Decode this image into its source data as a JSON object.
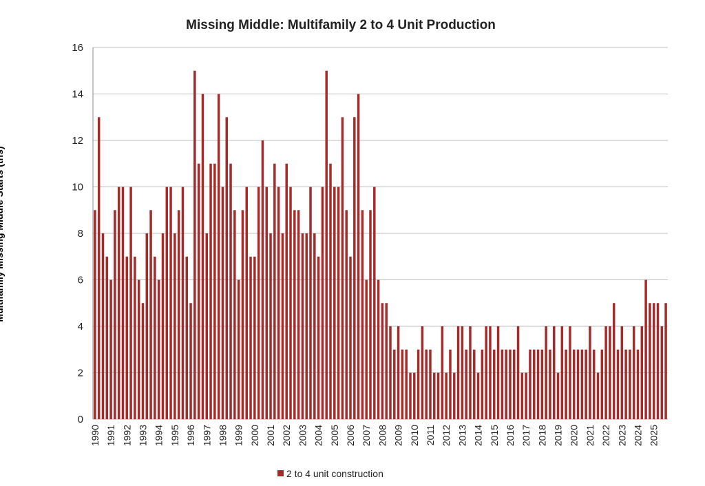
{
  "chart_data": {
    "type": "bar",
    "title": "Missing Middle: Multifamily 2 to 4 Unit Production",
    "y_label": "Multifamily Missing Middle Starts (ths)",
    "categories": [
      "1990",
      null,
      null,
      null,
      "1991",
      null,
      null,
      null,
      "1992",
      null,
      null,
      null,
      "1993",
      null,
      null,
      null,
      "1994",
      null,
      null,
      null,
      "1995",
      null,
      null,
      null,
      "1996",
      null,
      null,
      null,
      "1997",
      null,
      null,
      null,
      "1998",
      null,
      null,
      null,
      "1999",
      null,
      null,
      null,
      "2000",
      null,
      null,
      null,
      "2001",
      null,
      null,
      null,
      "2002",
      null,
      null,
      null,
      "2003",
      null,
      null,
      null,
      "2004",
      null,
      null,
      null,
      "2005",
      null,
      null,
      null,
      "2006",
      null,
      null,
      null,
      "2007",
      null,
      null,
      null,
      "2008",
      null,
      null,
      null,
      "2009",
      null,
      null,
      null,
      "2010",
      null,
      null,
      null,
      "2011",
      null,
      null,
      null,
      "2012",
      null,
      null,
      null,
      "2013",
      null,
      null,
      null,
      "2014",
      null,
      null,
      null,
      "2015",
      null,
      null,
      null,
      "2016",
      null,
      null,
      null,
      "2017",
      null,
      null,
      null,
      "2018",
      null,
      null,
      null,
      "2019",
      null,
      null,
      null,
      "2020",
      null,
      null,
      null,
      "2021",
      null,
      null,
      null,
      "2022",
      null,
      null,
      null,
      "2023",
      null,
      null,
      null,
      "2024",
      null,
      null,
      null,
      "2025",
      null,
      null,
      null
    ],
    "series": [
      {
        "name": "2 to 4 unit construction",
        "color": "#a52a2a",
        "values": [
          9,
          13,
          8,
          7,
          6,
          9,
          10,
          10,
          7,
          10,
          7,
          6,
          5,
          8,
          9,
          7,
          6,
          8,
          10,
          10,
          8,
          9,
          10,
          7,
          5,
          15,
          11,
          14,
          8,
          11,
          11,
          14,
          10,
          13,
          11,
          9,
          6,
          9,
          10,
          7,
          7,
          10,
          12,
          10,
          8,
          11,
          10,
          8,
          11,
          10,
          9,
          9,
          8,
          8,
          10,
          8,
          7,
          10,
          15,
          11,
          10,
          10,
          13,
          9,
          7,
          13,
          14,
          9,
          6,
          9,
          10,
          6,
          5,
          5,
          4,
          3,
          4,
          3,
          3,
          2,
          2,
          3,
          4,
          3,
          3,
          2,
          2,
          4,
          2,
          3,
          2,
          4,
          4,
          3,
          4,
          3,
          2,
          3,
          4,
          4,
          3,
          4,
          3,
          3,
          3,
          3,
          4,
          2,
          2,
          3,
          3,
          3,
          3,
          4,
          3,
          4,
          2,
          4,
          3,
          4,
          3,
          3,
          3,
          3,
          4,
          3,
          2,
          3,
          4,
          4,
          5,
          3,
          4,
          3,
          3,
          4,
          3,
          4,
          6,
          5,
          5,
          5,
          4,
          5
        ]
      }
    ],
    "ylim": [
      0,
      16
    ],
    "yticks": [
      0,
      2,
      4,
      6,
      8,
      10,
      12,
      14,
      16
    ],
    "grid": true,
    "legend": "bottom"
  }
}
